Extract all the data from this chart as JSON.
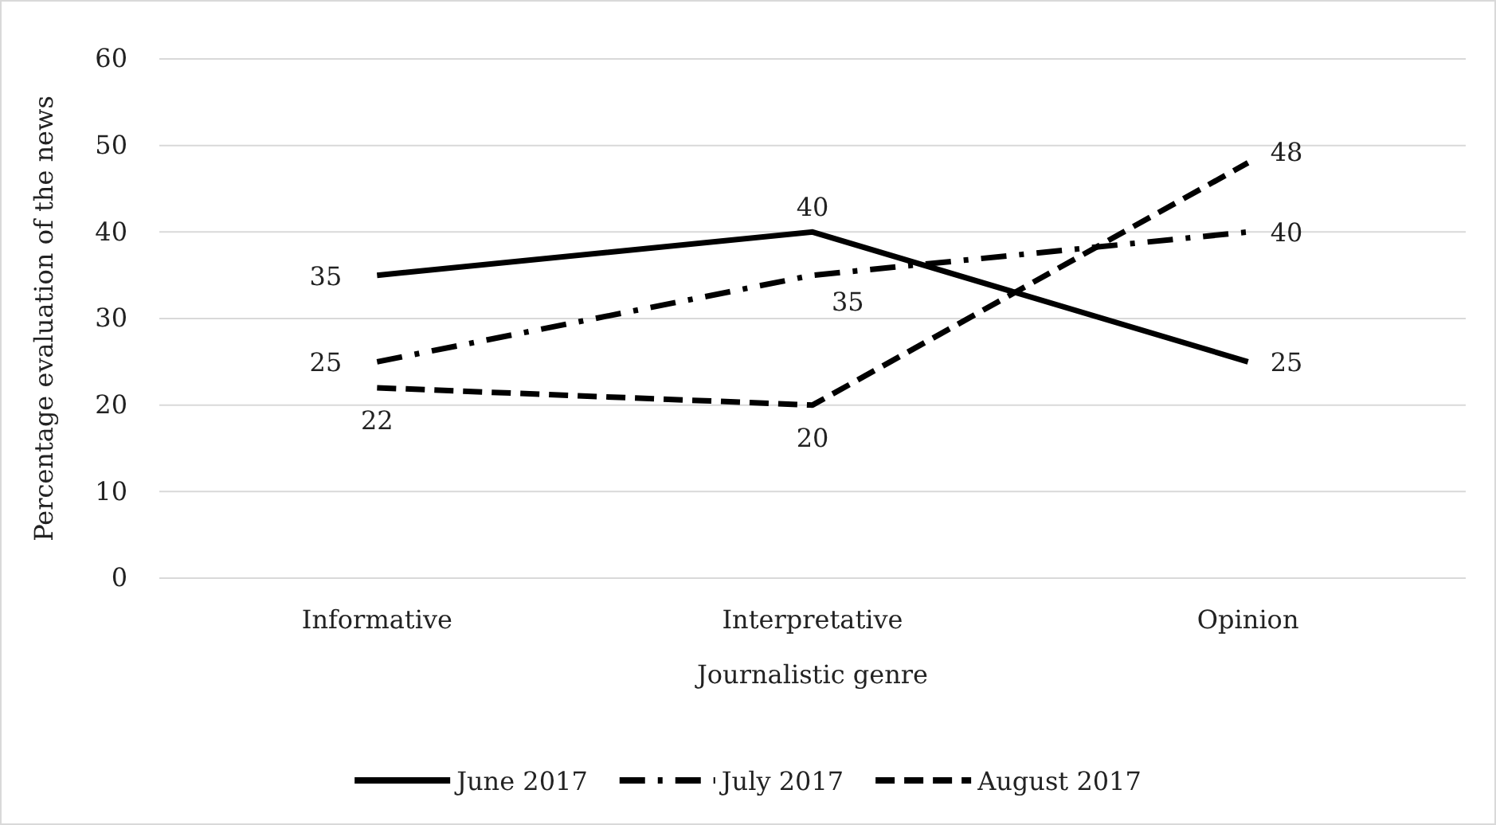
{
  "chart_data": {
    "type": "line",
    "xlabel": "Journalistic genre",
    "ylabel": "Percentage evaluation of the news",
    "categories": [
      "Informative",
      "Interpretative",
      "Opinion"
    ],
    "series": [
      {
        "name": "June 2017",
        "color": "#000000",
        "line_style": "solid",
        "values": [
          35,
          40,
          25
        ]
      },
      {
        "name": "July 2017",
        "color": "#000000",
        "line_style": "dashdot",
        "values": [
          25,
          35,
          40
        ]
      },
      {
        "name": "August 2017",
        "color": "#000000",
        "line_style": "dashed",
        "values": [
          22,
          20,
          48
        ]
      }
    ],
    "ylim": [
      0,
      60
    ],
    "yticks": [
      0,
      10,
      20,
      30,
      40,
      50,
      60
    ],
    "grid": "y",
    "legend": "bottom",
    "data_labels": true,
    "marker": "none"
  }
}
